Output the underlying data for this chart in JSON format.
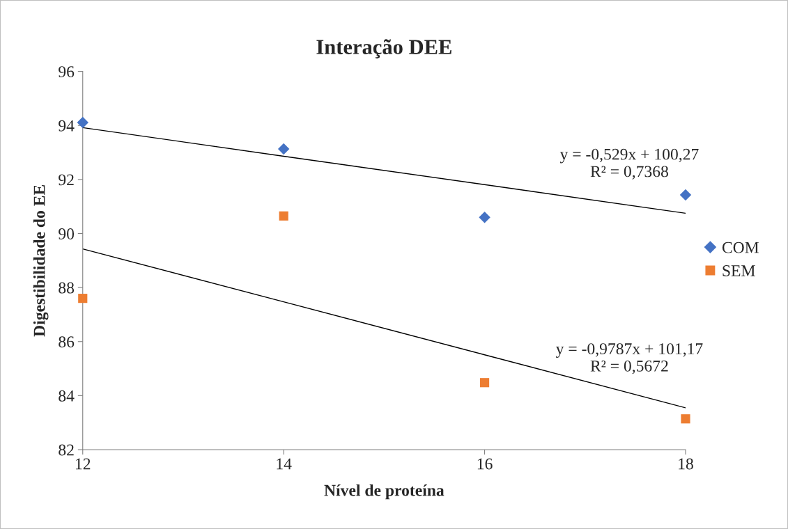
{
  "chart_data": {
    "type": "scatter",
    "title": "Interação DEE",
    "xlabel": "Nível de proteína",
    "ylabel": "Digestibilidade do EE",
    "x": [
      12,
      14,
      16,
      18
    ],
    "series": [
      {
        "name": "COM",
        "color": "#4472c4",
        "marker": "diamond",
        "values": [
          94.11,
          93.13,
          90.6,
          91.43
        ]
      },
      {
        "name": "SEM",
        "color": "#ed7d31",
        "marker": "square",
        "values": [
          87.6,
          90.65,
          84.48,
          83.14
        ]
      },
      {
        "type": "line",
        "color": "#000000",
        "values": [
          93.92,
          92.86,
          91.81,
          90.75
        ]
      },
      {
        "type": "line",
        "color": "#000000",
        "values": [
          89.43,
          87.47,
          85.51,
          83.55
        ]
      }
    ],
    "annotations": [
      "y = -0,529x + 100,27\nR² = 0,7368",
      "y = -0,9787x + 101,17\nR² = 0,5672"
    ],
    "xlim": [
      12,
      18
    ],
    "xticks": [
      12,
      14,
      16,
      18
    ],
    "ylim": [
      82,
      96
    ],
    "yticks": [
      82,
      84,
      86,
      88,
      90,
      92,
      94,
      96
    ],
    "legend": "right",
    "grid": false
  }
}
